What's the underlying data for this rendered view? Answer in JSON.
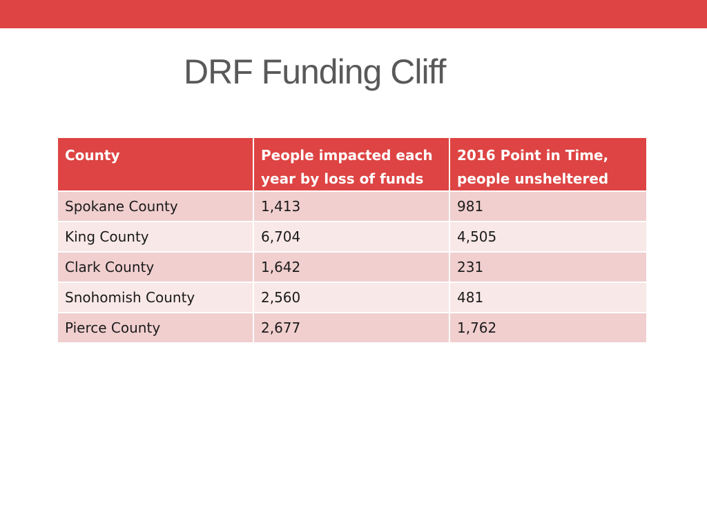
{
  "slide": {
    "title": "DRF Funding Cliff"
  },
  "table": {
    "headers": [
      "County",
      "People impacted each year by loss of funds",
      "2016 Point in Time, people unsheltered"
    ],
    "rows": [
      [
        "Spokane County",
        "1,413",
        "981"
      ],
      [
        "King County",
        "6,704",
        "4,505"
      ],
      [
        "Clark County",
        "1,642",
        "231"
      ],
      [
        "Snohomish County",
        "2,560",
        "481"
      ],
      [
        "Pierce County",
        "2,677",
        "1,762"
      ]
    ]
  },
  "colors": {
    "accent": "#dd4443",
    "row_dark": "#f1cfcf",
    "row_light": "#f9e8e8",
    "title_text": "#595959"
  }
}
